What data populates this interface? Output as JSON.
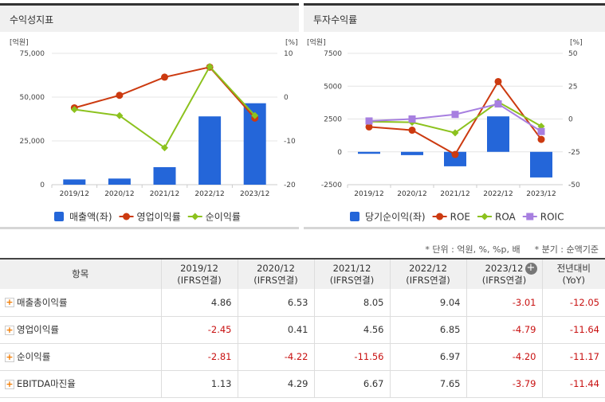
{
  "panels": {
    "left_title": "수익성지표",
    "right_title": "투자수익률"
  },
  "chart_data": [
    {
      "type": "bar+line",
      "categories": [
        "2019/12",
        "2020/12",
        "2021/12",
        "2022/12",
        "2023/12"
      ],
      "left_unit": "[억원]",
      "right_unit": "[%]",
      "left_ticks": [
        "75,000",
        "50,000",
        "25,000",
        "0"
      ],
      "right_ticks": [
        "10",
        "0",
        "-10",
        "-20"
      ],
      "ylim_left": [
        0,
        75000
      ],
      "ylim_right": [
        -20,
        10
      ],
      "grid": true,
      "legend": "bottom",
      "series": [
        {
          "name": "매출액(좌)",
          "kind": "bar",
          "axis": "left",
          "color": "#2466d9",
          "values": [
            3000,
            3500,
            10000,
            39000,
            46500
          ]
        },
        {
          "name": "영업이익률",
          "kind": "line",
          "axis": "right",
          "color": "#cc3a10",
          "marker": "circle",
          "values": [
            -2.45,
            0.41,
            4.56,
            6.85,
            -4.79
          ]
        },
        {
          "name": "순이익률",
          "kind": "line",
          "axis": "right",
          "color": "#8cc21e",
          "marker": "diamond",
          "values": [
            -2.81,
            -4.22,
            -11.56,
            6.97,
            -4.2
          ]
        }
      ]
    },
    {
      "type": "bar+line",
      "categories": [
        "2019/12",
        "2020/12",
        "2021/12",
        "2022/12",
        "2023/12"
      ],
      "left_unit": "[억원]",
      "right_unit": "[%]",
      "left_ticks": [
        "7500",
        "5000",
        "2500",
        "0",
        "-2500"
      ],
      "right_ticks": [
        "50",
        "25",
        "0",
        "-25",
        "-50"
      ],
      "ylim_left": [
        -2500,
        7500
      ],
      "ylim_right": [
        -50,
        50
      ],
      "grid": true,
      "legend": "bottom",
      "series": [
        {
          "name": "당기순이익(좌)",
          "kind": "bar",
          "axis": "left",
          "color": "#2466d9",
          "values": [
            -150,
            -250,
            -1100,
            2700,
            -1950
          ]
        },
        {
          "name": "ROE",
          "kind": "line",
          "axis": "right",
          "color": "#cc3a10",
          "marker": "circle",
          "values": [
            -6,
            -8.5,
            -27,
            28.5,
            -15.5
          ]
        },
        {
          "name": "ROA",
          "kind": "line",
          "axis": "right",
          "color": "#8cc21e",
          "marker": "diamond",
          "values": [
            -2,
            -2.5,
            -10.5,
            13,
            -5.5
          ]
        },
        {
          "name": "ROIC",
          "kind": "line",
          "axis": "right",
          "color": "#a77fe0",
          "marker": "square",
          "values": [
            -1.5,
            0,
            3.5,
            11.5,
            -9.5
          ]
        }
      ]
    }
  ],
  "note": {
    "unit": "* 단위 : 억원, %, %p, 배",
    "quarter": "* 분기 : 순액기준"
  },
  "table": {
    "headers": [
      {
        "l1": "항목",
        "l2": ""
      },
      {
        "l1": "2019/12",
        "l2": "(IFRS연결)"
      },
      {
        "l1": "2020/12",
        "l2": "(IFRS연결)"
      },
      {
        "l1": "2021/12",
        "l2": "(IFRS연결)"
      },
      {
        "l1": "2022/12",
        "l2": "(IFRS연결)"
      },
      {
        "l1": "2023/12",
        "l2": "(IFRS연결)"
      },
      {
        "l1": "전년대비",
        "l2": "(YoY)"
      }
    ],
    "rows": [
      {
        "label": "매출총이익률",
        "values": [
          "4.86",
          "6.53",
          "8.05",
          "9.04",
          "-3.01",
          "-12.05"
        ]
      },
      {
        "label": "영업이익률",
        "values": [
          "-2.45",
          "0.41",
          "4.56",
          "6.85",
          "-4.79",
          "-11.64"
        ]
      },
      {
        "label": "순이익률",
        "values": [
          "-2.81",
          "-4.22",
          "-11.56",
          "6.97",
          "-4.20",
          "-11.17"
        ]
      },
      {
        "label": "EBITDA마진율",
        "values": [
          "1.13",
          "4.29",
          "6.67",
          "7.65",
          "-3.79",
          "-11.44"
        ]
      }
    ]
  }
}
